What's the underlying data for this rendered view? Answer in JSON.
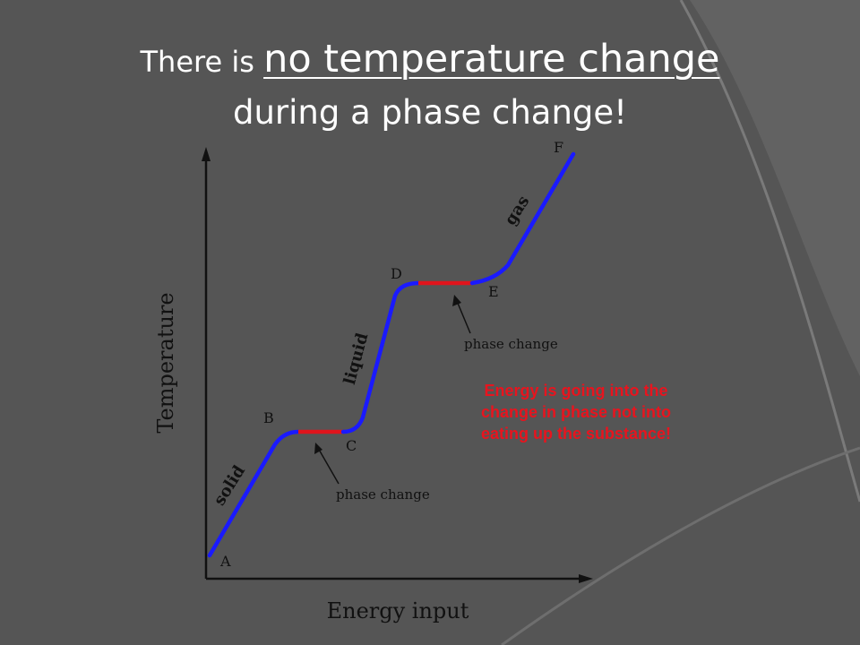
{
  "title": {
    "line1_prefix": "There is ",
    "line1_emphasis": "no temperature change",
    "line2": "during a phase change!"
  },
  "chart_data": {
    "type": "line",
    "title": "",
    "xlabel": "Energy input",
    "ylabel": "Temperature",
    "points": [
      {
        "label": "A"
      },
      {
        "label": "B"
      },
      {
        "label": "C"
      },
      {
        "label": "D"
      },
      {
        "label": "E"
      },
      {
        "label": "F"
      }
    ],
    "segment_labels": [
      "solid",
      "liquid",
      "gas"
    ],
    "annotations": [
      "phase change",
      "phase change"
    ],
    "colors": {
      "heating": "#1a1aff",
      "phase_change": "#e0141c"
    }
  },
  "note": {
    "text": "Energy is going into the change in phase not into eating up the substance!",
    "color": "#e8141e"
  },
  "theme": {
    "background": "#555555",
    "swoosh": "#6a6a6a",
    "title_color": "#ffffff"
  }
}
